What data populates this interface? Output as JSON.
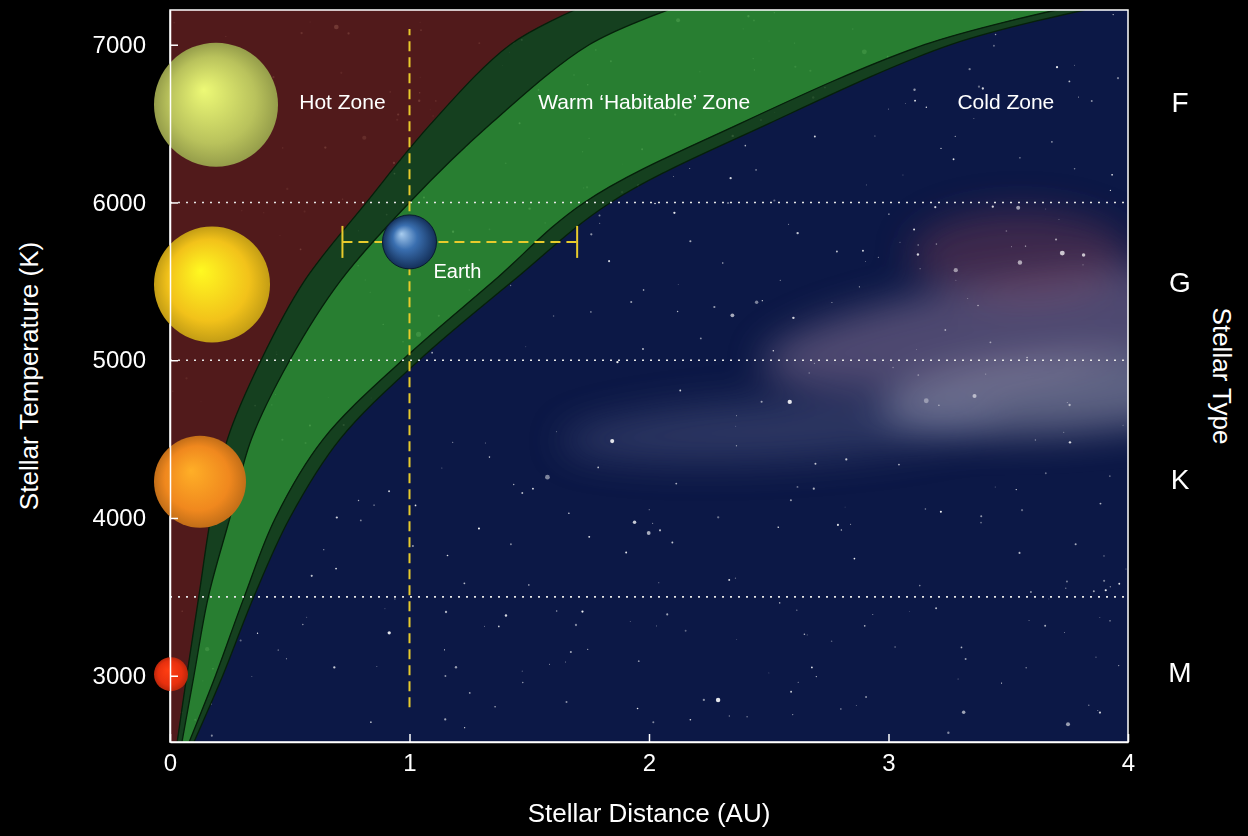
{
  "chart_data": {
    "type": "area",
    "x_label": "Stellar Distance (AU)",
    "y_label": "Stellar Temperature (K)",
    "y2_label": "Stellar Type",
    "xlim": [
      0,
      4
    ],
    "ylim": [
      2580,
      7220
    ],
    "xticks": [
      0,
      1,
      2,
      3,
      4
    ],
    "yticks": [
      3000,
      4000,
      5000,
      6000,
      7000
    ],
    "temperatures": [
      2580,
      3000,
      3500,
      4000,
      4500,
      5000,
      5500,
      6000,
      6500,
      7000,
      7220
    ],
    "edges": [
      [
        0.03,
        0.07,
        0.12,
        0.17,
        0.24,
        0.38,
        0.56,
        0.82,
        1.09,
        1.42,
        1.69
      ],
      [
        0.05,
        0.1,
        0.16,
        0.25,
        0.34,
        0.5,
        0.71,
        1.0,
        1.34,
        1.75,
        2.08
      ],
      [
        0.08,
        0.19,
        0.31,
        0.44,
        0.64,
        0.97,
        1.35,
        1.73,
        2.38,
        3.15,
        3.7
      ],
      [
        0.1,
        0.22,
        0.35,
        0.5,
        0.71,
        1.04,
        1.43,
        1.84,
        2.5,
        3.26,
        3.82
      ]
    ],
    "zones": [
      {
        "label": "Hot Zone",
        "color": "#5e1b14",
        "label_distance": 0.72,
        "label_temperature": 6630
      },
      {
        "label": "Warm ‘Habitable’ Zone",
        "color": "#2c8c2f",
        "edge_color": "#17461a",
        "label_distance": 1.98,
        "label_temperature": 6630
      },
      {
        "label": "Cold Zone",
        "color": "#0c1846",
        "label_distance": 3.49,
        "label_temperature": 6630
      }
    ],
    "type_boundaries": [
      6000,
      5000,
      3500
    ],
    "stellar_types": [
      {
        "label": "F",
        "temperature": 6620,
        "color": "#b9c25c"
      },
      {
        "label": "G",
        "temperature": 5480,
        "color": "#f2c21a"
      },
      {
        "label": "K",
        "temperature": 4230,
        "color": "#f0881e"
      },
      {
        "label": "M",
        "temperature": 3010,
        "color": "#e8300e"
      }
    ],
    "earth": {
      "label": "Earth",
      "distance": 1,
      "temperature": 5750,
      "distance_range": [
        0.72,
        1.7
      ],
      "temperature_range": [
        2800,
        7100
      ]
    }
  }
}
